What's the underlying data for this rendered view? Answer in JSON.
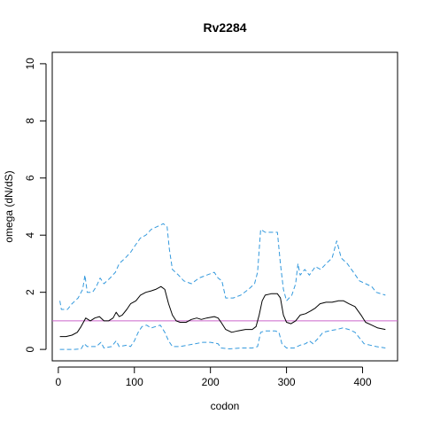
{
  "chart_data": {
    "type": "line",
    "title": "Rv2284",
    "xlabel": "codon",
    "ylabel": "omega (dN/dS)",
    "xlim": [
      -8,
      446
    ],
    "ylim": [
      -0.4,
      10.4
    ],
    "x_ticks": [
      0,
      100,
      200,
      300,
      400
    ],
    "y_ticks": [
      0,
      2,
      4,
      6,
      8,
      10
    ],
    "x_tick_labels": [
      "0",
      "100",
      "200",
      "300",
      "400"
    ],
    "y_tick_labels": [
      "0",
      "2",
      "4",
      "6",
      "8",
      "10"
    ],
    "grid": false,
    "legend": "none",
    "reference_line": {
      "y": 1.0,
      "color": "#cc66cc"
    },
    "series": [
      {
        "role": "upper-interval",
        "color": "#3399dd",
        "dash": "dashed",
        "points": [
          [
            2,
            1.7
          ],
          [
            4,
            1.4
          ],
          [
            12,
            1.4
          ],
          [
            18,
            1.6
          ],
          [
            26,
            1.8
          ],
          [
            32,
            2.1
          ],
          [
            35,
            2.6
          ],
          [
            38,
            2.0
          ],
          [
            45,
            2.0
          ],
          [
            50,
            2.2
          ],
          [
            55,
            2.5
          ],
          [
            60,
            2.3
          ],
          [
            68,
            2.5
          ],
          [
            75,
            2.7
          ],
          [
            80,
            3.0
          ],
          [
            88,
            3.2
          ],
          [
            95,
            3.4
          ],
          [
            100,
            3.6
          ],
          [
            108,
            3.9
          ],
          [
            115,
            4.0
          ],
          [
            122,
            4.2
          ],
          [
            130,
            4.3
          ],
          [
            138,
            4.4
          ],
          [
            143,
            4.3
          ],
          [
            146,
            3.5
          ],
          [
            150,
            2.8
          ],
          [
            158,
            2.6
          ],
          [
            165,
            2.4
          ],
          [
            175,
            2.3
          ],
          [
            185,
            2.5
          ],
          [
            195,
            2.6
          ],
          [
            205,
            2.7
          ],
          [
            210,
            2.5
          ],
          [
            215,
            2.4
          ],
          [
            220,
            1.8
          ],
          [
            230,
            1.8
          ],
          [
            240,
            1.9
          ],
          [
            250,
            2.1
          ],
          [
            258,
            2.3
          ],
          [
            262,
            2.7
          ],
          [
            266,
            4.2
          ],
          [
            272,
            4.1
          ],
          [
            288,
            4.1
          ],
          [
            292,
            3.0
          ],
          [
            296,
            2.1
          ],
          [
            300,
            1.7
          ],
          [
            307,
            1.9
          ],
          [
            312,
            2.3
          ],
          [
            315,
            3.0
          ],
          [
            318,
            2.6
          ],
          [
            324,
            2.8
          ],
          [
            330,
            2.6
          ],
          [
            338,
            2.9
          ],
          [
            345,
            2.8
          ],
          [
            352,
            3.0
          ],
          [
            360,
            3.2
          ],
          [
            366,
            3.8
          ],
          [
            372,
            3.2
          ],
          [
            380,
            3.0
          ],
          [
            388,
            2.7
          ],
          [
            396,
            2.4
          ],
          [
            404,
            2.3
          ],
          [
            412,
            2.2
          ],
          [
            418,
            2.0
          ],
          [
            430,
            1.9
          ]
        ]
      },
      {
        "role": "estimate",
        "color": "#000000",
        "dash": "solid",
        "points": [
          [
            2,
            0.45
          ],
          [
            10,
            0.45
          ],
          [
            18,
            0.5
          ],
          [
            25,
            0.6
          ],
          [
            30,
            0.8
          ],
          [
            36,
            1.1
          ],
          [
            42,
            1.0
          ],
          [
            48,
            1.1
          ],
          [
            54,
            1.15
          ],
          [
            60,
            1.0
          ],
          [
            66,
            1.0
          ],
          [
            72,
            1.1
          ],
          [
            76,
            1.3
          ],
          [
            80,
            1.15
          ],
          [
            84,
            1.2
          ],
          [
            90,
            1.4
          ],
          [
            95,
            1.6
          ],
          [
            102,
            1.7
          ],
          [
            108,
            1.9
          ],
          [
            115,
            2.0
          ],
          [
            122,
            2.05
          ],
          [
            128,
            2.1
          ],
          [
            135,
            2.2
          ],
          [
            140,
            2.1
          ],
          [
            145,
            1.6
          ],
          [
            150,
            1.2
          ],
          [
            155,
            1.0
          ],
          [
            160,
            0.95
          ],
          [
            168,
            0.95
          ],
          [
            175,
            1.05
          ],
          [
            182,
            1.1
          ],
          [
            188,
            1.05
          ],
          [
            195,
            1.1
          ],
          [
            205,
            1.15
          ],
          [
            210,
            1.1
          ],
          [
            214,
            0.95
          ],
          [
            220,
            0.7
          ],
          [
            228,
            0.6
          ],
          [
            236,
            0.65
          ],
          [
            246,
            0.7
          ],
          [
            255,
            0.7
          ],
          [
            260,
            0.8
          ],
          [
            264,
            1.2
          ],
          [
            268,
            1.7
          ],
          [
            272,
            1.9
          ],
          [
            280,
            1.95
          ],
          [
            288,
            1.95
          ],
          [
            292,
            1.8
          ],
          [
            296,
            1.2
          ],
          [
            300,
            0.95
          ],
          [
            306,
            0.9
          ],
          [
            312,
            1.0
          ],
          [
            318,
            1.2
          ],
          [
            325,
            1.25
          ],
          [
            332,
            1.35
          ],
          [
            338,
            1.45
          ],
          [
            344,
            1.6
          ],
          [
            352,
            1.65
          ],
          [
            360,
            1.65
          ],
          [
            368,
            1.7
          ],
          [
            375,
            1.7
          ],
          [
            382,
            1.6
          ],
          [
            390,
            1.5
          ],
          [
            398,
            1.2
          ],
          [
            404,
            0.95
          ],
          [
            412,
            0.85
          ],
          [
            420,
            0.75
          ],
          [
            430,
            0.7
          ]
        ]
      },
      {
        "role": "lower-interval",
        "color": "#3399dd",
        "dash": "dashed",
        "points": [
          [
            2,
            0.0
          ],
          [
            20,
            0.0
          ],
          [
            30,
            0.02
          ],
          [
            34,
            0.2
          ],
          [
            38,
            0.1
          ],
          [
            50,
            0.1
          ],
          [
            56,
            0.25
          ],
          [
            60,
            0.05
          ],
          [
            70,
            0.1
          ],
          [
            76,
            0.3
          ],
          [
            80,
            0.1
          ],
          [
            90,
            0.15
          ],
          [
            95,
            0.1
          ],
          [
            100,
            0.3
          ],
          [
            105,
            0.6
          ],
          [
            110,
            0.8
          ],
          [
            116,
            0.85
          ],
          [
            122,
            0.75
          ],
          [
            128,
            0.8
          ],
          [
            134,
            0.85
          ],
          [
            140,
            0.6
          ],
          [
            145,
            0.3
          ],
          [
            150,
            0.1
          ],
          [
            160,
            0.1
          ],
          [
            170,
            0.15
          ],
          [
            180,
            0.2
          ],
          [
            190,
            0.25
          ],
          [
            200,
            0.25
          ],
          [
            210,
            0.2
          ],
          [
            214,
            0.05
          ],
          [
            225,
            0.02
          ],
          [
            240,
            0.05
          ],
          [
            255,
            0.05
          ],
          [
            262,
            0.1
          ],
          [
            266,
            0.6
          ],
          [
            272,
            0.65
          ],
          [
            285,
            0.65
          ],
          [
            290,
            0.6
          ],
          [
            294,
            0.2
          ],
          [
            300,
            0.05
          ],
          [
            310,
            0.05
          ],
          [
            318,
            0.15
          ],
          [
            325,
            0.2
          ],
          [
            330,
            0.3
          ],
          [
            335,
            0.2
          ],
          [
            342,
            0.4
          ],
          [
            348,
            0.6
          ],
          [
            356,
            0.65
          ],
          [
            366,
            0.7
          ],
          [
            374,
            0.75
          ],
          [
            382,
            0.7
          ],
          [
            390,
            0.6
          ],
          [
            396,
            0.4
          ],
          [
            402,
            0.2
          ],
          [
            410,
            0.15
          ],
          [
            418,
            0.1
          ],
          [
            430,
            0.05
          ]
        ]
      }
    ]
  }
}
